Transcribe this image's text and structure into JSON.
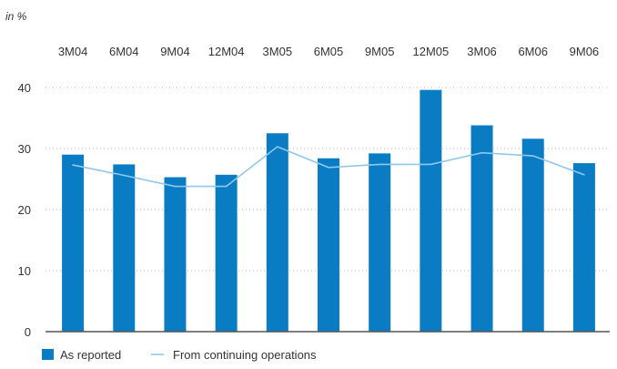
{
  "chart_data": {
    "type": "bar",
    "unit_label": "in %",
    "categories": [
      "3M04",
      "6M04",
      "9M04",
      "12M04",
      "3M05",
      "6M05",
      "9M05",
      "12M05",
      "3M06",
      "6M06",
      "9M06"
    ],
    "series": [
      {
        "name": "As reported",
        "type": "bar",
        "color": "#0a7cc4",
        "values": [
          29.0,
          27.4,
          25.3,
          25.7,
          32.5,
          28.4,
          29.2,
          39.6,
          33.8,
          31.6,
          27.6
        ]
      },
      {
        "name": "From continuing operations",
        "type": "line",
        "color": "#8ec8ec",
        "values": [
          27.3,
          25.6,
          23.8,
          23.8,
          30.3,
          26.9,
          27.4,
          27.4,
          29.3,
          28.8,
          25.7
        ]
      }
    ],
    "y_ticks": [
      0,
      10,
      20,
      30,
      40
    ],
    "ylim": [
      0,
      43
    ],
    "grid": true,
    "legend_position": "bottom-left"
  }
}
